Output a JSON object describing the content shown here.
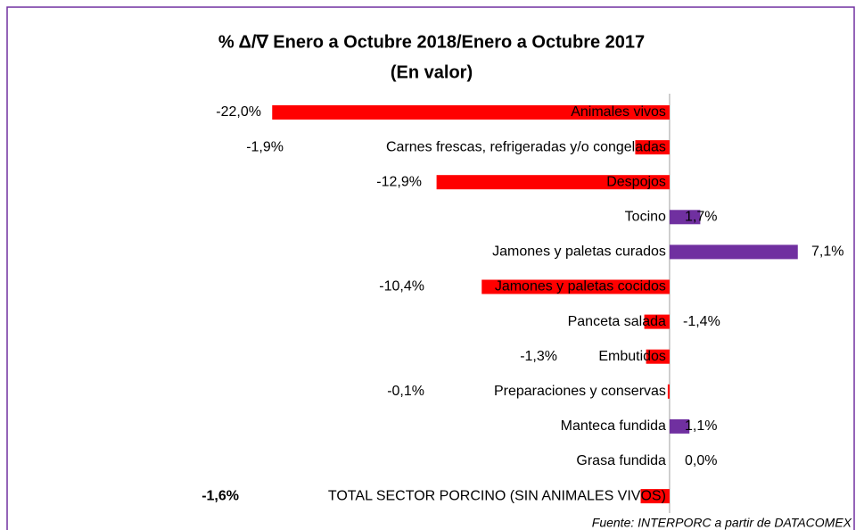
{
  "chart_data": {
    "type": "barh",
    "title": "% Δ/∇ Enero a Octubre 2018/Enero a Octubre 2017",
    "subtitle": "(En valor)",
    "categories": [
      "Animales vivos",
      "Carnes frescas, refrigeradas y/o congeladas",
      "Despojos",
      "Tocino",
      "Jamones y paletas curados",
      "Jamones y paletas cocidos",
      "Panceta salada",
      "Embutidos",
      "Preparaciones y conservas",
      "Manteca fundida",
      "Grasa fundida",
      "TOTAL SECTOR PORCINO (SIN ANIMALES VIVOS)"
    ],
    "values": [
      -22.0,
      -1.9,
      -12.9,
      1.7,
      7.1,
      -10.4,
      -1.4,
      -1.3,
      -0.1,
      1.1,
      0.0,
      -1.6
    ],
    "value_labels": [
      "-22,0%",
      "-1,9%",
      "-12,9%",
      "1,7%",
      "7,1%",
      "-10,4%",
      "-1,4%",
      "-1,3%",
      "-0,1%",
      "1,1%",
      "0,0%",
      "-1,6%"
    ],
    "colors": [
      "#ff0000",
      "#ff0000",
      "#ff0000",
      "#7030a0",
      "#7030a0",
      "#ff0000",
      "#ff0000",
      "#ff0000",
      "#ff0000",
      "#7030a0",
      "#7030a0",
      "#ff0000"
    ],
    "xlim": [
      -23,
      8
    ],
    "source": "Fuente: INTERPORC a partir de DATACOMEX"
  }
}
